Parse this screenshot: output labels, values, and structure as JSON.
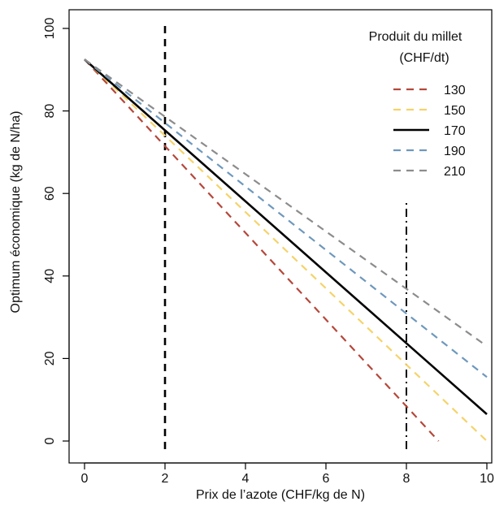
{
  "chart_data": {
    "type": "line",
    "title": "",
    "xlabel": "Prix de l’azote (CHF/kg de N)",
    "ylabel": "Optimum économique (kg de N/ha)",
    "xlim": [
      0,
      10
    ],
    "ylim": [
      0,
      100
    ],
    "x_ticks": [
      0,
      2,
      4,
      6,
      8,
      10
    ],
    "y_ticks": [
      0,
      20,
      40,
      60,
      80,
      100
    ],
    "grid": false,
    "legend": {
      "title_line1": "Produit du millet",
      "title_line2": "(CHF/dt)",
      "position": "top-right"
    },
    "series": [
      {
        "name": "130",
        "color": "#b5473a",
        "style": "dashed",
        "x": [
          0,
          8.8
        ],
        "y": [
          92.5,
          0
        ]
      },
      {
        "name": "150",
        "color": "#f5d36a",
        "style": "dashed",
        "x": [
          0,
          10
        ],
        "y": [
          92.5,
          0
        ]
      },
      {
        "name": "170",
        "color": "#000000",
        "style": "solid",
        "x": [
          0,
          10
        ],
        "y": [
          92.5,
          6.5
        ]
      },
      {
        "name": "190",
        "color": "#6e98bd",
        "style": "dashed",
        "x": [
          0,
          10
        ],
        "y": [
          92.5,
          15.5
        ]
      },
      {
        "name": "210",
        "color": "#8c8c8c",
        "style": "dashed",
        "x": [
          0,
          10
        ],
        "y": [
          92.5,
          23
        ]
      }
    ],
    "reference_lines": [
      {
        "name": "vline-2",
        "x": 2,
        "y_from": 0,
        "y_to": 100,
        "style": "dashed",
        "color": "#000000"
      },
      {
        "name": "vline-8",
        "x": 8,
        "y_from": 0,
        "y_to": 58,
        "style": "dashdot",
        "color": "#000000"
      }
    ]
  }
}
